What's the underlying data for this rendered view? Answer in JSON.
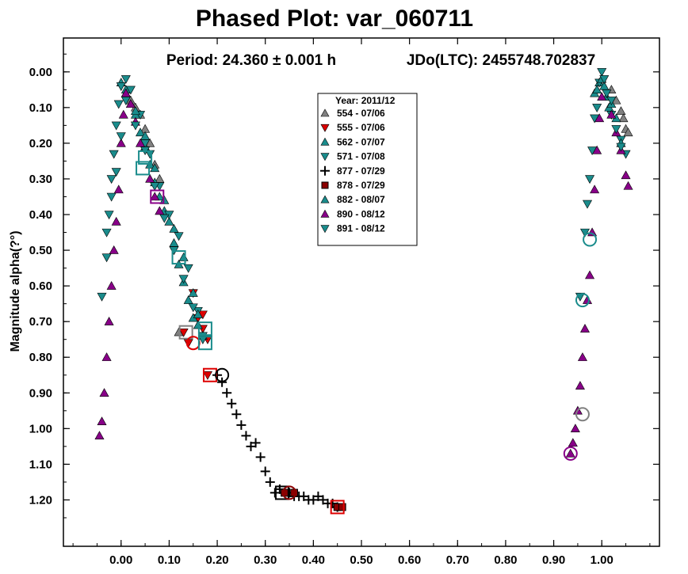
{
  "chart_data": {
    "type": "scatter",
    "title": "Phased Plot: var_060711",
    "subtitle_period": "Period: 24.360 ± 0.001 h",
    "subtitle_epoch": "JDo(LTC): 2455748.702837",
    "xlabel": "",
    "ylabel": "Magnitude alpha(?°)",
    "xlim": [
      -0.12,
      1.12
    ],
    "ylim": [
      1.33,
      -0.095
    ],
    "y_inverted": true,
    "grid": false,
    "legend_position": "top-center",
    "x_ticks": [
      "0.00",
      "0.10",
      "0.20",
      "0.30",
      "0.40",
      "0.50",
      "0.60",
      "0.70",
      "0.80",
      "0.90",
      "1.00"
    ],
    "y_ticks": [
      "0.00",
      "0.10",
      "0.20",
      "0.30",
      "0.40",
      "0.50",
      "0.60",
      "0.70",
      "0.80",
      "0.90",
      "1.00",
      "1.10",
      "1.20"
    ],
    "legend_title": "Year: 2011/12",
    "series": [
      {
        "name": "554 - 07/06",
        "marker": "triangle-up",
        "color": "#808080",
        "points": [
          [
            0.02,
            0.08
          ],
          [
            0.03,
            0.1
          ],
          [
            0.04,
            0.12
          ],
          [
            0.05,
            0.16
          ],
          [
            0.06,
            0.2
          ],
          [
            0.07,
            0.26
          ],
          [
            0.08,
            0.3
          ],
          [
            0.12,
            0.73
          ],
          [
            1.02,
            0.05
          ],
          [
            1.03,
            0.08
          ],
          [
            1.04,
            0.11
          ],
          [
            1.045,
            0.13
          ],
          [
            1.05,
            0.16
          ],
          [
            1.055,
            0.17
          ]
        ]
      },
      {
        "name": "555 - 07/06",
        "marker": "triangle-down",
        "color": "#dd0000",
        "points": [
          [
            0.13,
            0.73
          ],
          [
            0.14,
            0.76
          ],
          [
            0.15,
            0.62
          ],
          [
            0.16,
            0.69
          ],
          [
            0.17,
            0.68
          ],
          [
            0.17,
            0.72
          ],
          [
            0.18,
            0.75
          ],
          [
            0.18,
            0.85
          ]
        ]
      },
      {
        "name": "562 - 07/07",
        "marker": "triangle-up",
        "color": "#1a8c8c",
        "points": [
          [
            0.0,
            0.03
          ],
          [
            0.01,
            0.05
          ],
          [
            0.02,
            0.09
          ],
          [
            0.03,
            0.12
          ],
          [
            0.04,
            0.17
          ],
          [
            0.05,
            0.21
          ],
          [
            0.06,
            0.26
          ],
          [
            0.07,
            0.31
          ],
          [
            0.08,
            0.35
          ],
          [
            0.09,
            0.39
          ],
          [
            0.1,
            0.42
          ],
          [
            0.11,
            0.48
          ],
          [
            0.12,
            0.54
          ],
          [
            0.13,
            0.59
          ],
          [
            0.14,
            0.64
          ],
          [
            0.15,
            0.69
          ],
          [
            0.16,
            0.71
          ],
          [
            0.17,
            0.74
          ],
          [
            0.985,
            0.06
          ],
          [
            0.995,
            0.03
          ],
          [
            1.005,
            0.04
          ],
          [
            1.01,
            0.07
          ],
          [
            1.015,
            0.1
          ],
          [
            1.03,
            0.13
          ]
        ]
      },
      {
        "name": "571 - 07/08",
        "marker": "triangle-down",
        "color": "#1a8c8c",
        "points": [
          [
            -0.04,
            0.63
          ],
          [
            -0.03,
            0.52
          ],
          [
            -0.025,
            0.4
          ],
          [
            -0.02,
            0.3
          ],
          [
            -0.015,
            0.23
          ],
          [
            -0.01,
            0.15
          ],
          [
            -0.005,
            0.09
          ],
          [
            0.0,
            0.04
          ],
          [
            0.01,
            0.02
          ],
          [
            0.02,
            0.05
          ],
          [
            0.04,
            0.12
          ],
          [
            0.05,
            0.2
          ],
          [
            0.06,
            0.23
          ],
          [
            0.08,
            0.32
          ],
          [
            0.1,
            0.4
          ],
          [
            0.12,
            0.46
          ],
          [
            0.14,
            0.55
          ],
          [
            0.16,
            0.67
          ],
          [
            0.17,
            0.74
          ],
          [
            0.955,
            0.63
          ],
          [
            0.965,
            0.45
          ],
          [
            0.975,
            0.3
          ],
          [
            0.985,
            0.13
          ],
          [
            0.995,
            0.03
          ],
          [
            1.0,
            0.0
          ],
          [
            1.01,
            0.06
          ],
          [
            1.02,
            0.12
          ],
          [
            1.04,
            0.19
          ],
          [
            1.05,
            0.23
          ]
        ]
      },
      {
        "name": "877 - 07/29",
        "marker": "plus",
        "color": "#000000",
        "points": [
          [
            0.2,
            0.85
          ],
          [
            0.21,
            0.87
          ],
          [
            0.22,
            0.9
          ],
          [
            0.23,
            0.93
          ],
          [
            0.24,
            0.96
          ],
          [
            0.25,
            0.99
          ],
          [
            0.26,
            1.02
          ],
          [
            0.27,
            1.05
          ],
          [
            0.28,
            1.04
          ],
          [
            0.29,
            1.08
          ],
          [
            0.3,
            1.12
          ],
          [
            0.31,
            1.15
          ],
          [
            0.32,
            1.18
          ],
          [
            0.33,
            1.17
          ],
          [
            0.34,
            1.18
          ],
          [
            0.35,
            1.18
          ],
          [
            0.36,
            1.19
          ],
          [
            0.37,
            1.19
          ],
          [
            0.38,
            1.19
          ],
          [
            0.39,
            1.2
          ],
          [
            0.4,
            1.2
          ],
          [
            0.41,
            1.19
          ],
          [
            0.42,
            1.2
          ],
          [
            0.43,
            1.21
          ],
          [
            0.44,
            1.21
          ],
          [
            0.45,
            1.22
          ]
        ]
      },
      {
        "name": "878 - 07/29",
        "marker": "square",
        "color": "#8b0000",
        "points": [
          [
            0.34,
            1.18
          ],
          [
            0.36,
            1.18
          ],
          [
            0.45,
            1.22
          ],
          [
            0.46,
            1.22
          ]
        ]
      },
      {
        "name": "882 - 08/07",
        "marker": "triangle-up",
        "color": "#1a8c8c",
        "points": [
          [
            0.01,
            0.06
          ],
          [
            0.03,
            0.11
          ],
          [
            0.05,
            0.18
          ],
          [
            0.07,
            0.27
          ],
          [
            0.09,
            0.36
          ],
          [
            0.11,
            0.44
          ],
          [
            0.13,
            0.52
          ],
          [
            0.15,
            0.62
          ],
          [
            0.16,
            0.68
          ],
          [
            0.99,
            0.05
          ],
          [
            1.0,
            0.02
          ],
          [
            1.02,
            0.09
          ],
          [
            1.04,
            0.2
          ]
        ]
      },
      {
        "name": "890 - 08/12",
        "marker": "triangle-up",
        "color": "#880088",
        "points": [
          [
            -0.045,
            1.02
          ],
          [
            -0.04,
            0.98
          ],
          [
            -0.035,
            0.9
          ],
          [
            -0.03,
            0.8
          ],
          [
            -0.025,
            0.7
          ],
          [
            -0.02,
            0.6
          ],
          [
            -0.015,
            0.5
          ],
          [
            -0.01,
            0.42
          ],
          [
            -0.005,
            0.33
          ],
          [
            0.0,
            0.2
          ],
          [
            0.005,
            0.12
          ],
          [
            0.01,
            0.06
          ],
          [
            0.02,
            0.09
          ],
          [
            0.03,
            0.14
          ],
          [
            0.04,
            0.2
          ],
          [
            0.06,
            0.3
          ],
          [
            0.07,
            0.35
          ],
          [
            0.08,
            0.39
          ],
          [
            0.935,
            1.07
          ],
          [
            0.94,
            1.04
          ],
          [
            0.945,
            1.0
          ],
          [
            0.95,
            0.95
          ],
          [
            0.955,
            0.88
          ],
          [
            0.96,
            0.8
          ],
          [
            0.965,
            0.72
          ],
          [
            0.97,
            0.64
          ],
          [
            0.975,
            0.57
          ],
          [
            0.98,
            0.45
          ],
          [
            0.985,
            0.33
          ],
          [
            0.99,
            0.22
          ],
          [
            0.995,
            0.13
          ],
          [
            1.0,
            0.07
          ],
          [
            1.02,
            0.12
          ],
          [
            1.03,
            0.17
          ],
          [
            1.04,
            0.22
          ],
          [
            1.05,
            0.29
          ],
          [
            1.055,
            0.32
          ]
        ]
      },
      {
        "name": "891 - 08/12",
        "marker": "triangle-down",
        "color": "#1a8c8c",
        "points": [
          [
            -0.03,
            0.45
          ],
          [
            -0.02,
            0.35
          ],
          [
            -0.01,
            0.28
          ],
          [
            0.0,
            0.18
          ],
          [
            0.01,
            0.08
          ],
          [
            0.03,
            0.15
          ],
          [
            0.05,
            0.22
          ],
          [
            0.07,
            0.32
          ],
          [
            0.09,
            0.41
          ],
          [
            0.11,
            0.5
          ],
          [
            0.13,
            0.58
          ],
          [
            0.15,
            0.66
          ],
          [
            0.17,
            0.75
          ],
          [
            0.97,
            0.37
          ],
          [
            0.98,
            0.22
          ],
          [
            0.99,
            0.1
          ],
          [
            1.005,
            0.02
          ],
          [
            1.02,
            0.08
          ],
          [
            1.03,
            0.16
          ],
          [
            1.04,
            0.21
          ]
        ]
      }
    ],
    "highlights": [
      {
        "shape": "square",
        "color": "#1a8c8c",
        "x": 0.05,
        "y": 0.24
      },
      {
        "shape": "square",
        "color": "#1a8c8c",
        "x": 0.045,
        "y": 0.27
      },
      {
        "shape": "square",
        "color": "#880088",
        "x": 0.075,
        "y": 0.35
      },
      {
        "shape": "square",
        "color": "#1a8c8c",
        "x": 0.12,
        "y": 0.52
      },
      {
        "shape": "square",
        "color": "#808080",
        "x": 0.135,
        "y": 0.73
      },
      {
        "shape": "circle",
        "color": "#dd0000",
        "x": 0.15,
        "y": 0.76
      },
      {
        "shape": "square",
        "color": "#1a8c8c",
        "x": 0.175,
        "y": 0.72
      },
      {
        "shape": "square",
        "color": "#1a8c8c",
        "x": 0.175,
        "y": 0.76
      },
      {
        "shape": "square",
        "color": "#dd0000",
        "x": 0.185,
        "y": 0.85
      },
      {
        "shape": "circle",
        "color": "#000000",
        "x": 0.21,
        "y": 0.85
      },
      {
        "shape": "square",
        "color": "#000000",
        "x": 0.335,
        "y": 1.18
      },
      {
        "shape": "circle",
        "color": "#8b0000",
        "x": 0.35,
        "y": 1.18
      },
      {
        "shape": "square",
        "color": "#dd0000",
        "x": 0.45,
        "y": 1.22
      },
      {
        "shape": "circle",
        "color": "#1a8c8c",
        "x": 0.975,
        "y": 0.47
      },
      {
        "shape": "circle",
        "color": "#1a8c8c",
        "x": 0.96,
        "y": 0.64
      },
      {
        "shape": "circle",
        "color": "#808080",
        "x": 0.96,
        "y": 0.96
      },
      {
        "shape": "circle",
        "color": "#880088",
        "x": 0.935,
        "y": 1.07
      }
    ]
  }
}
